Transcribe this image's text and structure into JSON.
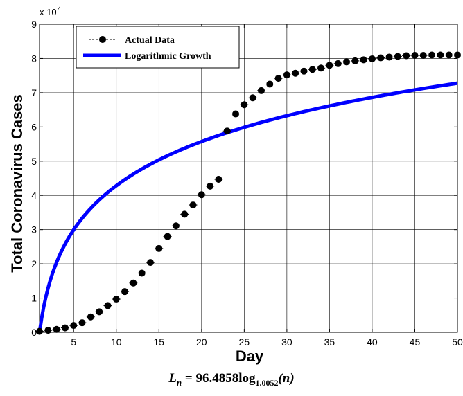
{
  "chart_data": {
    "type": "line",
    "xlabel": "Day",
    "ylabel": "Total Coronavirus Cases",
    "y_multiplier": "x 10",
    "y_multiplier_exponent": "4",
    "xlim": [
      1,
      50
    ],
    "ylim": [
      0,
      90000
    ],
    "x_ticks": [
      5,
      10,
      15,
      20,
      25,
      30,
      35,
      40,
      45,
      50
    ],
    "y_ticks": [
      0,
      10000,
      20000,
      30000,
      40000,
      50000,
      60000,
      70000,
      80000,
      90000
    ],
    "y_tick_labels": [
      "0",
      "1",
      "2",
      "3",
      "4",
      "5",
      "6",
      "7",
      "8",
      "9"
    ],
    "grid": true,
    "legend_placement": "top-left",
    "series": [
      {
        "name": "Actual Data",
        "style": "markers",
        "color": "#000000",
        "x": [
          1,
          2,
          3,
          4,
          5,
          6,
          7,
          8,
          9,
          10,
          11,
          12,
          13,
          14,
          15,
          16,
          17,
          18,
          19,
          20,
          21,
          22,
          23,
          24,
          25,
          26,
          27,
          28,
          29,
          30,
          31,
          32,
          33,
          34,
          35,
          36,
          37,
          38,
          39,
          40,
          41,
          42,
          43,
          44,
          45,
          46,
          47,
          48,
          49,
          50
        ],
        "y": [
          278,
          580,
          850,
          1300,
          2000,
          2800,
          4500,
          6000,
          7800,
          9700,
          11900,
          14400,
          17300,
          20400,
          24500,
          28000,
          31100,
          34500,
          37200,
          40200,
          42700,
          44700,
          58800,
          63800,
          66500,
          68500,
          70600,
          72500,
          74200,
          75200,
          75700,
          76300,
          76800,
          77200,
          78000,
          78500,
          79000,
          79300,
          79600,
          79900,
          80200,
          80400,
          80600,
          80800,
          80900,
          80900,
          81000,
          81000,
          81000,
          81000
        ]
      },
      {
        "name": "Logarithmic Growth",
        "style": "line",
        "color": "#0000ff",
        "formula_a": 96.4858,
        "formula_base": 1.0052
      }
    ]
  },
  "formula": {
    "lhs": "L",
    "lhs_sub": "n",
    "eq": " = 96.4858log",
    "base": "1.0052",
    "arg": "(n)"
  }
}
